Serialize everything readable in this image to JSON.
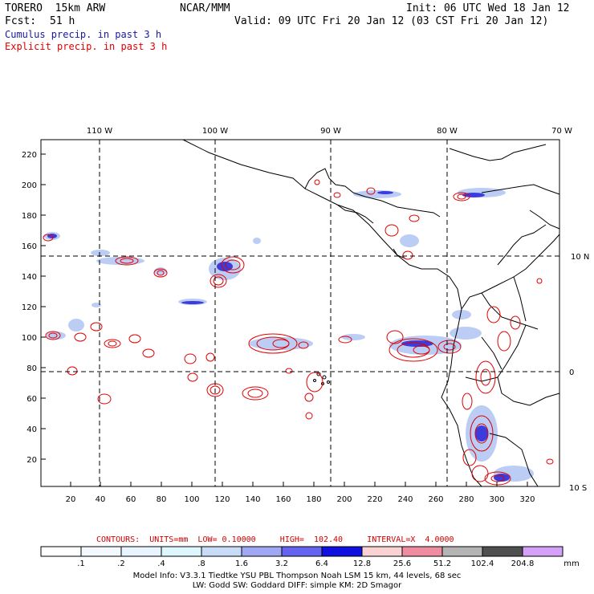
{
  "header": {
    "model": "TORERO  15km ARW",
    "center": "NCAR/MMM",
    "init": "Init: 06 UTC Wed 18 Jan 12",
    "fcst_label": "Fcst:",
    "fcst_value": "51 h",
    "valid": "Valid: 09 UTC Fri 20 Jan 12 (03 CST Fri 20 Jan 12)",
    "cumulus_label": "Cumulus precip. in past 3 h",
    "explicit_label": "Explicit precip. in past 3 h",
    "cumulus_color": "#1a1aa0",
    "explicit_color": "#e00000"
  },
  "map": {
    "lon_labels": [
      "110 W",
      "100 W",
      "90 W",
      "80 W",
      "70 W"
    ],
    "lat_labels": [
      "10 N",
      "0",
      "10 S"
    ],
    "x_ticks": [
      "20",
      "40",
      "60",
      "80",
      "100",
      "120",
      "140",
      "160",
      "180",
      "200",
      "220",
      "240",
      "260",
      "280",
      "300",
      "320"
    ],
    "y_ticks": [
      "20",
      "40",
      "60",
      "80",
      "100",
      "120",
      "140",
      "160",
      "180",
      "200",
      "220"
    ]
  },
  "contours": {
    "units": "CONTOURS:  UNITS=mm  LOW= 0.10000",
    "high": "HIGH=  102.40",
    "interval": "INTERVAL=X  4.0000"
  },
  "colorbar": {
    "labels": [
      ".1",
      ".2",
      ".4",
      ".8",
      "1.6",
      "3.2",
      "6.4",
      "12.8",
      "25.6",
      "51.2",
      "102.4",
      "204.8"
    ],
    "unit": "mm",
    "colors": [
      "#ffffff",
      "#f4f8ff",
      "#e8f4ff",
      "#def7ff",
      "#c8dcf8",
      "#a0a8f4",
      "#6464f0",
      "#1010e0",
      "#fad2d2",
      "#f08ca0",
      "#b4b4b4",
      "#505050",
      "#d4a0f8"
    ]
  },
  "footer": {
    "line1": "Model Info: V3.3.1    Tiedtke YSU PBL  Thompson    Noah LSM  15 km,   44 levels,   68 sec",
    "line2": "LW: Godd SW: Goddard DIFF: simple KM: 2D Smagor"
  }
}
